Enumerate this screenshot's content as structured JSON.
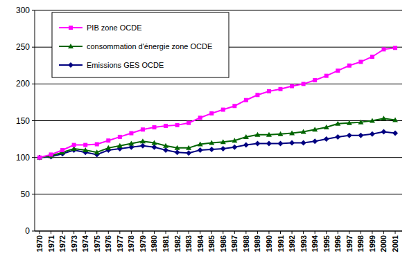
{
  "chart_data": {
    "type": "line",
    "categories": [
      "1970",
      "1971",
      "1972",
      "1973",
      "1974",
      "1975",
      "1976",
      "1977",
      "1978",
      "1979",
      "1980",
      "1981",
      "1982",
      "1983",
      "1984",
      "1985",
      "1986",
      "1987",
      "1988",
      "1989",
      "1990",
      "1991",
      "1992",
      "1993",
      "1994",
      "1995",
      "1996",
      "1997",
      "1998",
      "1999",
      "2000",
      "2001"
    ],
    "series": [
      {
        "name": "PIB zone OCDE",
        "color": "#ff00ff",
        "marker": "square",
        "values": [
          100,
          104,
          110,
          117,
          117,
          118,
          123,
          128,
          133,
          138,
          141,
          143,
          144,
          147,
          154,
          160,
          165,
          170,
          178,
          185,
          190,
          193,
          197,
          200,
          205,
          211,
          218,
          225,
          230,
          237,
          247,
          249
        ]
      },
      {
        "name": "consommation d'énergie zone OCDE",
        "color": "#006400",
        "marker": "triangle",
        "values": [
          100,
          102,
          107,
          112,
          110,
          107,
          113,
          116,
          119,
          122,
          120,
          116,
          113,
          113,
          118,
          120,
          121,
          123,
          128,
          131,
          131,
          132,
          133,
          135,
          138,
          141,
          146,
          147,
          148,
          150,
          153,
          151
        ]
      },
      {
        "name": "Emissions GES OCDE",
        "color": "#000080",
        "marker": "diamond",
        "values": [
          100,
          101,
          105,
          110,
          107,
          104,
          110,
          112,
          114,
          116,
          114,
          110,
          107,
          106,
          110,
          111,
          112,
          114,
          117,
          119,
          119,
          119,
          120,
          120,
          122,
          125,
          128,
          130,
          130,
          132,
          135,
          133
        ]
      }
    ],
    "ylim": [
      0,
      300
    ],
    "yticks": [
      0,
      50,
      100,
      150,
      200,
      250,
      300
    ],
    "grid": true,
    "legend": "top-left"
  }
}
